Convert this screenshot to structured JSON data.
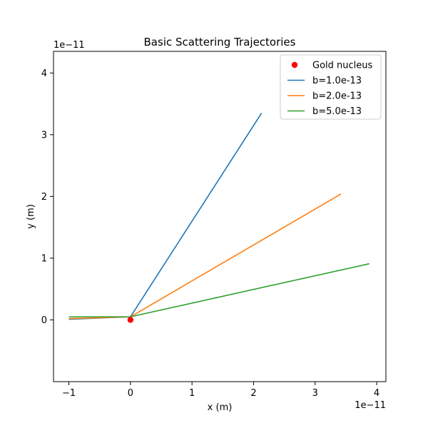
{
  "chart_data": {
    "type": "line",
    "title": "Basic Scattering Trajectories",
    "xlabel": "x (m)",
    "ylabel": "y (m)",
    "x_offset_label": "1e−11",
    "y_offset_label": "1e−11",
    "xlim": [
      -1.25,
      4.15
    ],
    "ylim": [
      -1.0,
      4.35
    ],
    "x_ticks": [
      -1,
      0,
      1,
      2,
      3,
      4
    ],
    "x_tick_labels": [
      "−1",
      "0",
      "1",
      "2",
      "3",
      "4"
    ],
    "y_ticks": [
      0,
      1,
      2,
      3,
      4
    ],
    "y_tick_labels": [
      "0",
      "1",
      "2",
      "3",
      "4"
    ],
    "grid": false,
    "legend_position": "top-right",
    "nucleus": {
      "name": "Gold nucleus",
      "x": 0,
      "y": 0,
      "color": "#ff0000"
    },
    "series": [
      {
        "name": "b=1.0e-13",
        "color": "#1f77b4",
        "x": [
          -1.0,
          0.0,
          2.13
        ],
        "y": [
          0.01,
          0.05,
          3.35
        ]
      },
      {
        "name": "b=2.0e-13",
        "color": "#ff7f0e",
        "x": [
          -1.0,
          0.0,
          3.42
        ],
        "y": [
          0.02,
          0.05,
          2.04
        ]
      },
      {
        "name": "b=5.0e-13",
        "color": "#2ca02c",
        "x": [
          -1.0,
          0.0,
          3.88
        ],
        "y": [
          0.05,
          0.05,
          0.91
        ]
      }
    ]
  }
}
